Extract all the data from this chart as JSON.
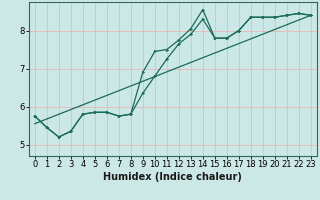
{
  "xlabel": "Humidex (Indice chaleur)",
  "ylabel": "",
  "background_color": "#cce8e6",
  "grid_color": "#e8b8b8",
  "line_color": "#1a6b5a",
  "xlim": [
    -0.5,
    23.5
  ],
  "ylim": [
    4.7,
    8.75
  ],
  "xticks": [
    0,
    1,
    2,
    3,
    4,
    5,
    6,
    7,
    8,
    9,
    10,
    11,
    12,
    13,
    14,
    15,
    16,
    17,
    18,
    19,
    20,
    21,
    22,
    23
  ],
  "yticks": [
    5,
    6,
    7,
    8
  ],
  "series1_x": [
    0,
    1,
    2,
    3,
    4,
    5,
    6,
    7,
    8,
    9,
    10,
    11,
    12,
    13,
    14,
    15,
    16,
    17,
    18,
    19,
    20,
    21,
    22,
    23
  ],
  "series1_y": [
    5.75,
    5.45,
    5.2,
    5.35,
    5.8,
    5.85,
    5.85,
    5.75,
    5.8,
    6.9,
    7.45,
    7.5,
    7.75,
    8.05,
    8.55,
    7.8,
    7.8,
    8.0,
    8.35,
    8.35,
    8.35,
    8.4,
    8.45,
    8.4
  ],
  "series2_x": [
    0,
    1,
    2,
    3,
    4,
    5,
    6,
    7,
    8,
    9,
    10,
    11,
    12,
    13,
    14,
    15,
    16,
    17,
    18,
    19,
    20,
    21,
    22,
    23
  ],
  "series2_y": [
    5.75,
    5.45,
    5.2,
    5.35,
    5.8,
    5.85,
    5.85,
    5.75,
    5.8,
    6.35,
    6.8,
    7.25,
    7.65,
    7.9,
    8.3,
    7.8,
    7.8,
    8.0,
    8.35,
    8.35,
    8.35,
    8.4,
    8.45,
    8.4
  ],
  "series3_x": [
    0,
    23
  ],
  "series3_y": [
    5.55,
    8.4
  ],
  "tick_fontsize": 6,
  "xlabel_fontsize": 7,
  "marker_size": 2.0,
  "line_width": 0.9
}
